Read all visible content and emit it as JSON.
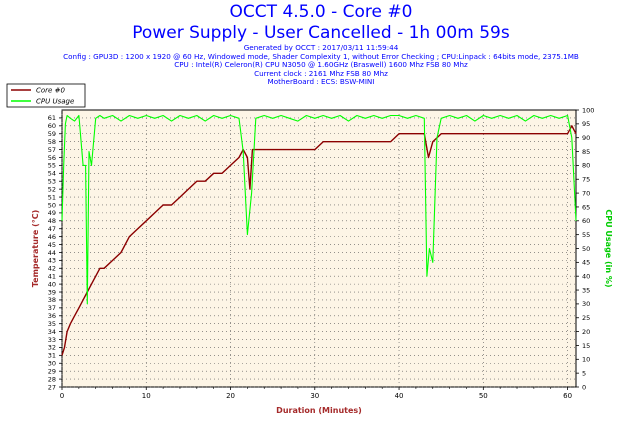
{
  "header": {
    "title": "OCCT 4.5.0 - Core #0",
    "subtitle": "Power Supply - User Cancelled - 1h 00m 59s",
    "info_lines": [
      "Generated by OCCT : 2017/03/11 11:59:44",
      "Config : GPU3D : 1200 x 1920 @ 60 Hz, Windowed mode, Shader Complexity 1, without Error Checking ; CPU:Linpack : 64bits mode, 2375.1MB",
      "CPU : Intel(R) Celeron(R) CPU N3050 @ 1.60GHz (Braswell) 1600 Mhz FSB 80 Mhz",
      "Current clock : 2161 Mhz FSB 80 Mhz",
      "MotherBoard : ECS: BSW-MINI"
    ]
  },
  "colors": {
    "title": "#0000ff",
    "core": "#8b0000",
    "cpu": "#00ff00",
    "plot_bg": "#fdf5e6",
    "axis_label_left": "#a52a2a",
    "axis_label_right": "#00cc00",
    "xlabel": "#a52a2a"
  },
  "chart_data": {
    "type": "line",
    "xlabel": "Duration (Minutes)",
    "ylabel_left": "Temperature (°C)",
    "ylabel_right": "CPU Usage (in %)",
    "xlim": [
      0,
      61
    ],
    "ylim_left": [
      27,
      62
    ],
    "ylim_right": [
      0,
      100
    ],
    "x_ticks": [
      0,
      10,
      20,
      30,
      40,
      50,
      60
    ],
    "y_ticks_left": [
      27,
      28,
      29,
      30,
      31,
      32,
      33,
      34,
      35,
      36,
      37,
      38,
      39,
      40,
      41,
      42,
      43,
      44,
      45,
      46,
      47,
      48,
      49,
      50,
      51,
      52,
      53,
      54,
      55,
      56,
      57,
      58,
      59,
      60,
      61
    ],
    "y_ticks_right": [
      0,
      5,
      10,
      15,
      20,
      25,
      30,
      35,
      40,
      45,
      50,
      55,
      60,
      65,
      70,
      75,
      80,
      85,
      90,
      95,
      100
    ],
    "legend_position": "top-left",
    "grid": true,
    "series": [
      {
        "name": "Core #0",
        "axis": "left",
        "x": [
          0,
          0.3,
          0.6,
          1,
          1.5,
          2,
          2.5,
          3,
          3.5,
          4,
          4.5,
          5,
          6,
          7,
          8,
          9,
          10,
          11,
          12,
          13,
          14,
          15,
          16,
          17,
          18,
          19,
          20,
          21,
          21.5,
          22,
          22.3,
          22.6,
          23,
          24,
          25,
          26,
          27,
          28,
          29,
          30,
          31,
          32,
          33,
          34,
          35,
          36,
          37,
          38,
          39,
          40,
          41,
          42,
          43,
          43.5,
          44,
          45,
          46,
          47,
          48,
          49,
          50,
          51,
          52,
          53,
          54,
          55,
          56,
          57,
          58,
          59,
          60,
          60.5,
          61
        ],
        "y": [
          31,
          32,
          34,
          35,
          36,
          37,
          38,
          39,
          40,
          41,
          42,
          42,
          43,
          44,
          46,
          47,
          48,
          49,
          50,
          50,
          51,
          52,
          53,
          53,
          54,
          54,
          55,
          56,
          57,
          56,
          52,
          57,
          57,
          57,
          57,
          57,
          57,
          57,
          57,
          57,
          58,
          58,
          58,
          58,
          58,
          58,
          58,
          58,
          58,
          59,
          59,
          59,
          59,
          56,
          58,
          59,
          59,
          59,
          59,
          59,
          59,
          59,
          59,
          59,
          59,
          59,
          59,
          59,
          59,
          59,
          59,
          60,
          59
        ]
      },
      {
        "name": "CPU Usage",
        "axis": "right",
        "x": [
          0,
          0.2,
          0.4,
          0.6,
          1,
          1.5,
          2,
          2.5,
          2.8,
          3,
          3.2,
          3.5,
          4,
          4.5,
          5,
          6,
          7,
          8,
          9,
          10,
          11,
          12,
          13,
          14,
          15,
          16,
          17,
          18,
          19,
          20,
          21,
          21.5,
          22,
          22.5,
          23,
          24,
          25,
          26,
          27,
          28,
          29,
          30,
          31,
          32,
          33,
          34,
          35,
          36,
          37,
          38,
          39,
          40,
          41,
          42,
          43,
          43.3,
          43.6,
          44,
          44.5,
          45,
          46,
          47,
          48,
          49,
          50,
          51,
          52,
          53,
          54,
          55,
          56,
          57,
          58,
          59,
          60,
          60.5,
          61
        ],
        "y": [
          60,
          80,
          95,
          98,
          97,
          96,
          98,
          80,
          80,
          30,
          85,
          80,
          97,
          98,
          97,
          98,
          96,
          98,
          97,
          98,
          97,
          98,
          96,
          98,
          97,
          98,
          96,
          98,
          97,
          98,
          97,
          85,
          55,
          70,
          97,
          98,
          97,
          98,
          97,
          96,
          98,
          97,
          98,
          97,
          98,
          96,
          98,
          97,
          98,
          97,
          98,
          98,
          97,
          98,
          97,
          40,
          50,
          45,
          90,
          97,
          98,
          97,
          98,
          96,
          98,
          97,
          98,
          97,
          98,
          96,
          98,
          97,
          98,
          97,
          98,
          90,
          60
        ]
      }
    ]
  }
}
